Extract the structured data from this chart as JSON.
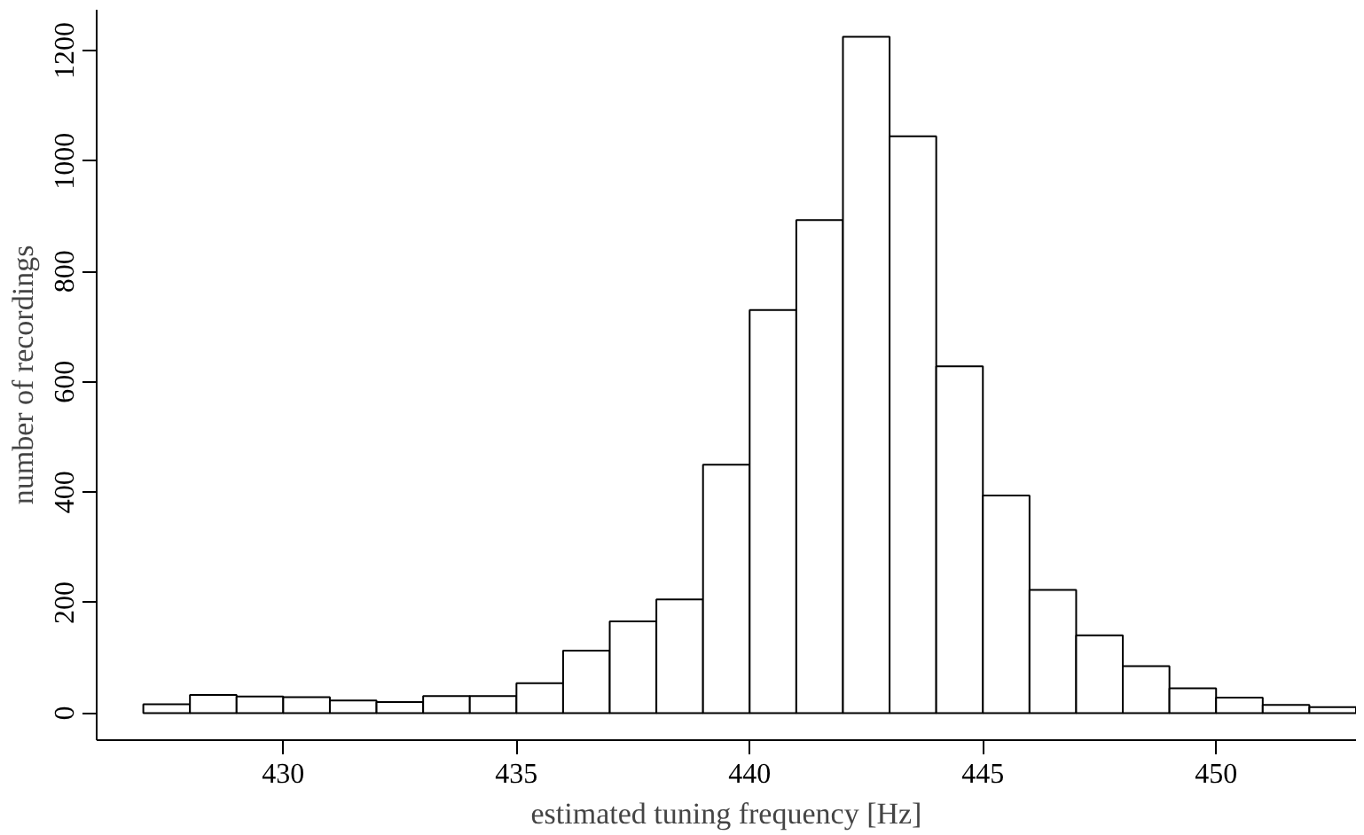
{
  "chart_data": {
    "type": "histogram",
    "xlabel": "estimated tuning frequency [Hz]",
    "ylabel": "number of recordings",
    "color": "#ffffff",
    "bins": [
      427,
      428,
      429,
      430,
      431,
      432,
      433,
      434,
      435,
      436,
      437,
      438,
      439,
      440,
      441,
      442,
      443,
      444,
      445,
      446,
      447,
      448,
      449,
      450,
      451,
      452,
      453
    ],
    "values": [
      16,
      33,
      30,
      29,
      23,
      20,
      31,
      31,
      54,
      113,
      166,
      206,
      450,
      730,
      893,
      1225,
      1045,
      628,
      394,
      223,
      141,
      85,
      45,
      28,
      15,
      11
    ],
    "xlim": [
      426,
      453
    ],
    "ylim": [
      -49,
      1274
    ],
    "xticks": [
      430,
      435,
      440,
      445,
      450
    ],
    "yticks": [
      0,
      200,
      400,
      600,
      800,
      1000,
      1200
    ],
    "grid": false
  }
}
